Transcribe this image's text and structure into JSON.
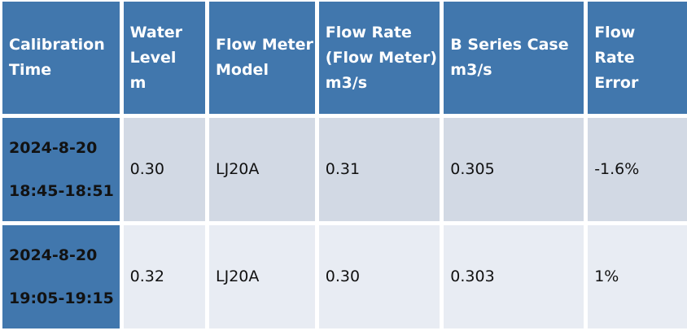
{
  "headers": [
    {
      "lines": [
        "Calibration",
        "Time"
      ]
    },
    {
      "lines": [
        "Water",
        "Level",
        "m"
      ]
    },
    {
      "lines": [
        "Flow Meter",
        "Model"
      ]
    },
    {
      "lines": [
        "Flow Rate",
        "(Flow Meter)",
        "m3/s"
      ]
    },
    {
      "lines": [
        "B Series Case",
        "m3/s"
      ]
    },
    {
      "lines": [
        "Flow  Rate",
        "Error"
      ]
    }
  ],
  "rows": [
    {
      "date": "2024-8-20",
      "time": "18:45-18:51",
      "water_level": "0.30",
      "model": "LJ20A",
      "flow_rate": "0.31",
      "b_series": "0.305",
      "error": "-1.6%"
    },
    {
      "date": "2024-8-20",
      "time": "19:05-19:15",
      "water_level": "0.32",
      "model": "LJ20A",
      "flow_rate": "0.30",
      "b_series": "0.303",
      "error": "1%"
    }
  ],
  "colors": {
    "header_bg": "#4177ad",
    "row1_bg": "#d2d9e4",
    "row2_bg": "#e8ecf3",
    "header_text": "#ffffff"
  }
}
